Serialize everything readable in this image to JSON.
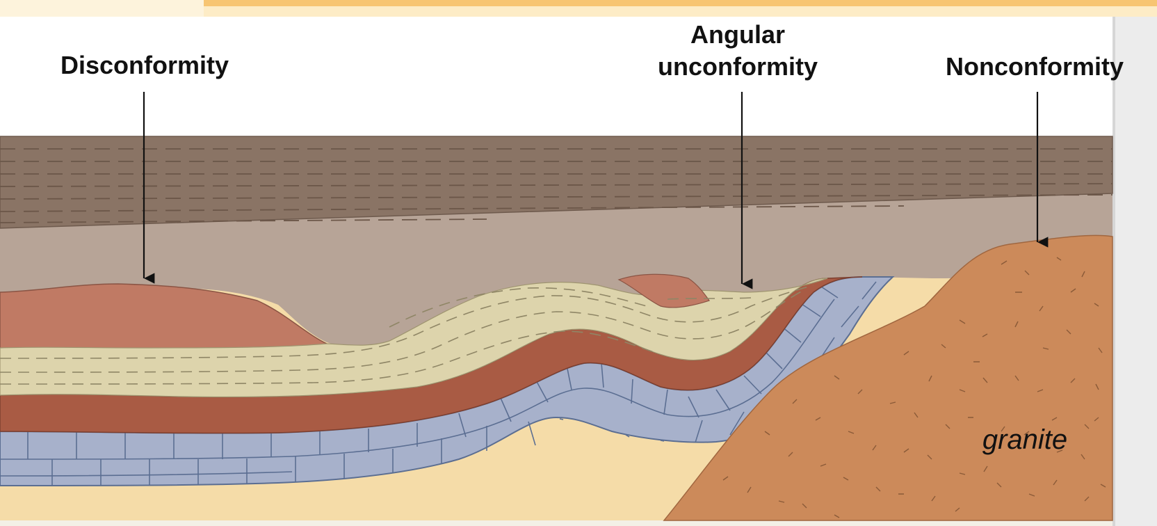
{
  "labels": {
    "disconformity": "Disconformity",
    "angular_line1": "Angular",
    "angular_line2": "unconformity",
    "nonconformity": "Nonconformity",
    "granite": "granite"
  },
  "colors": {
    "top_bar": "#f7c572",
    "top_bar_fill": "#fdecc6",
    "shale_top": "#8a7465",
    "overlying": "#b7a497",
    "red_siltstone": "#c07a64",
    "sandstone_dashed": "#ddd4ac",
    "red_layer": "#a95b44",
    "limestone": "#a7b1cb",
    "limestone_line": "#5b6e92",
    "basement_sand": "#f5dca8",
    "granite": "#cc8a5a",
    "arrow": "#111111"
  }
}
